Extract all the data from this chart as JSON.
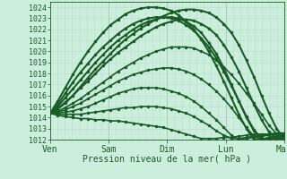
{
  "title": "",
  "xlabel": "Pression niveau de la mer( hPa )",
  "bg_color": "#cceedd",
  "grid_major_color": "#aaccbb",
  "grid_minor_color": "#bbddcc",
  "line_color": "#1a5c28",
  "line_color2": "#2d7a3a",
  "ylim": [
    1012,
    1024.5
  ],
  "yticks": [
    1012,
    1013,
    1014,
    1015,
    1016,
    1017,
    1018,
    1019,
    1020,
    1021,
    1022,
    1023,
    1024
  ],
  "xtick_labels": [
    "Ven",
    "Sam",
    "Dim",
    "Lun",
    "Mar"
  ],
  "xtick_positions": [
    0,
    1,
    2,
    3,
    4
  ],
  "series": [
    [
      1014.4,
      1014.6,
      1014.9,
      1015.3,
      1015.7,
      1016.2,
      1016.7,
      1017.2,
      1017.7,
      1018.2,
      1018.6,
      1019.0,
      1019.4,
      1019.7,
      1020.0,
      1020.2,
      1020.4,
      1020.4,
      1020.4,
      1020.3,
      1020.0,
      1019.7,
      1019.2,
      1018.6,
      1017.9,
      1017.1,
      1016.2,
      1015.3,
      1014.3,
      1013.3,
      1012.5,
      1012.1
    ],
    [
      1014.4,
      1014.5,
      1014.7,
      1015.0,
      1015.3,
      1015.7,
      1016.1,
      1016.5,
      1016.9,
      1017.3,
      1017.6,
      1017.9,
      1018.1,
      1018.3,
      1018.4,
      1018.5,
      1018.5,
      1018.4,
      1018.2,
      1017.9,
      1017.5,
      1017.0,
      1016.4,
      1015.7,
      1014.9,
      1014.0,
      1013.1,
      1012.3,
      1012.0,
      1012.1,
      1012.2,
      1012.3
    ],
    [
      1014.4,
      1014.4,
      1014.5,
      1014.6,
      1014.8,
      1015.0,
      1015.3,
      1015.6,
      1015.9,
      1016.2,
      1016.4,
      1016.6,
      1016.7,
      1016.7,
      1016.7,
      1016.6,
      1016.4,
      1016.2,
      1015.9,
      1015.5,
      1015.0,
      1014.4,
      1013.8,
      1013.1,
      1012.4,
      1012.0,
      1012.1,
      1012.2,
      1012.3,
      1012.4,
      1012.5,
      1012.5
    ],
    [
      1014.4,
      1014.3,
      1014.3,
      1014.3,
      1014.3,
      1014.4,
      1014.5,
      1014.6,
      1014.7,
      1014.8,
      1014.9,
      1014.9,
      1015.0,
      1015.0,
      1015.0,
      1014.9,
      1014.8,
      1014.6,
      1014.4,
      1014.1,
      1013.7,
      1013.3,
      1012.8,
      1012.4,
      1012.1,
      1012.1,
      1012.2,
      1012.3,
      1012.4,
      1012.5,
      1012.6,
      1012.6
    ],
    [
      1014.4,
      1014.2,
      1014.1,
      1014.0,
      1013.9,
      1013.9,
      1013.8,
      1013.8,
      1013.7,
      1013.7,
      1013.6,
      1013.5,
      1013.4,
      1013.3,
      1013.2,
      1013.1,
      1012.9,
      1012.7,
      1012.5,
      1012.3,
      1012.1,
      1012.1,
      1012.1,
      1012.2,
      1012.2,
      1012.3,
      1012.4,
      1012.5,
      1012.5,
      1012.5,
      1012.5,
      1012.5
    ],
    [
      1014.4,
      1014.8,
      1015.4,
      1016.0,
      1016.7,
      1017.3,
      1018.0,
      1018.7,
      1019.3,
      1019.9,
      1020.4,
      1020.9,
      1021.4,
      1021.8,
      1022.2,
      1022.5,
      1022.7,
      1022.9,
      1022.9,
      1022.8,
      1022.5,
      1022.1,
      1021.5,
      1020.6,
      1019.5,
      1018.2,
      1016.7,
      1015.2,
      1013.8,
      1012.7,
      1012.1,
      1012.0
    ],
    [
      1014.4,
      1015.0,
      1015.8,
      1016.6,
      1017.4,
      1018.2,
      1019.0,
      1019.7,
      1020.4,
      1021.0,
      1021.5,
      1022.0,
      1022.4,
      1022.7,
      1022.9,
      1023.1,
      1023.1,
      1023.0,
      1022.7,
      1022.3,
      1021.7,
      1020.8,
      1019.8,
      1018.5,
      1017.0,
      1015.5,
      1014.0,
      1012.8,
      1012.1,
      1012.0,
      1012.1,
      1012.2
    ],
    [
      1014.4,
      1015.2,
      1016.2,
      1017.2,
      1018.1,
      1018.9,
      1019.7,
      1020.4,
      1021.0,
      1021.6,
      1022.1,
      1022.5,
      1022.8,
      1023.0,
      1023.1,
      1023.1,
      1023.0,
      1022.8,
      1022.4,
      1021.9,
      1021.2,
      1020.4,
      1019.4,
      1018.2,
      1016.9,
      1015.5,
      1014.1,
      1012.9,
      1012.1,
      1012.0,
      1012.2,
      1012.3
    ],
    [
      1014.4,
      1015.5,
      1016.7,
      1017.9,
      1019.0,
      1020.0,
      1020.9,
      1021.7,
      1022.4,
      1022.9,
      1023.4,
      1023.7,
      1023.9,
      1024.0,
      1024.0,
      1023.9,
      1023.7,
      1023.3,
      1022.7,
      1022.0,
      1021.1,
      1020.0,
      1018.7,
      1017.3,
      1015.8,
      1014.3,
      1013.0,
      1012.0,
      1012.0,
      1012.2,
      1012.3,
      1012.4
    ],
    [
      1014.4,
      1014.8,
      1015.3,
      1016.0,
      1016.8,
      1017.6,
      1018.4,
      1019.1,
      1019.8,
      1020.5,
      1021.1,
      1021.6,
      1022.1,
      1022.5,
      1022.9,
      1023.2,
      1023.5,
      1023.7,
      1023.8,
      1023.8,
      1023.7,
      1023.5,
      1023.1,
      1022.5,
      1021.7,
      1020.6,
      1019.2,
      1017.7,
      1016.0,
      1014.4,
      1013.0,
      1012.1
    ]
  ]
}
